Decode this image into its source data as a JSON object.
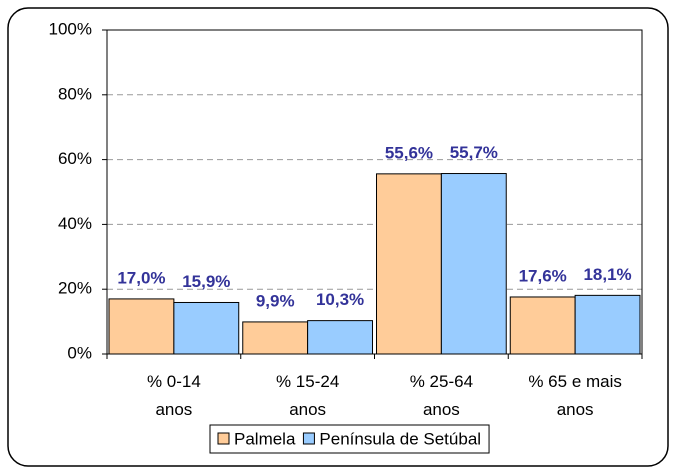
{
  "chart_data": {
    "type": "bar",
    "categories": [
      "% 0-14 anos",
      "% 15-24 anos",
      "% 25-64 anos",
      "% 65 e mais anos"
    ],
    "series": [
      {
        "name": "Palmela",
        "color": "#ffcc99",
        "values": [
          17.0,
          9.9,
          55.6,
          17.6
        ],
        "value_labels": [
          "17,0%",
          "9,9%",
          "55,6%",
          "17,6%"
        ]
      },
      {
        "name": "Península de Setúbal",
        "color": "#99ccff",
        "values": [
          15.9,
          10.3,
          55.7,
          18.1
        ],
        "value_labels": [
          "15,9%",
          "10,3%",
          "55,7%",
          "18,1%"
        ]
      }
    ],
    "ylim": [
      0,
      100
    ],
    "yticks": [
      {
        "value": 0,
        "label": "0%"
      },
      {
        "value": 20,
        "label": "20%"
      },
      {
        "value": 40,
        "label": "40%"
      },
      {
        "value": 60,
        "label": "60%"
      },
      {
        "value": 80,
        "label": "80%"
      },
      {
        "value": 100,
        "label": "100%"
      }
    ],
    "grid": true,
    "legend": "bottom"
  }
}
